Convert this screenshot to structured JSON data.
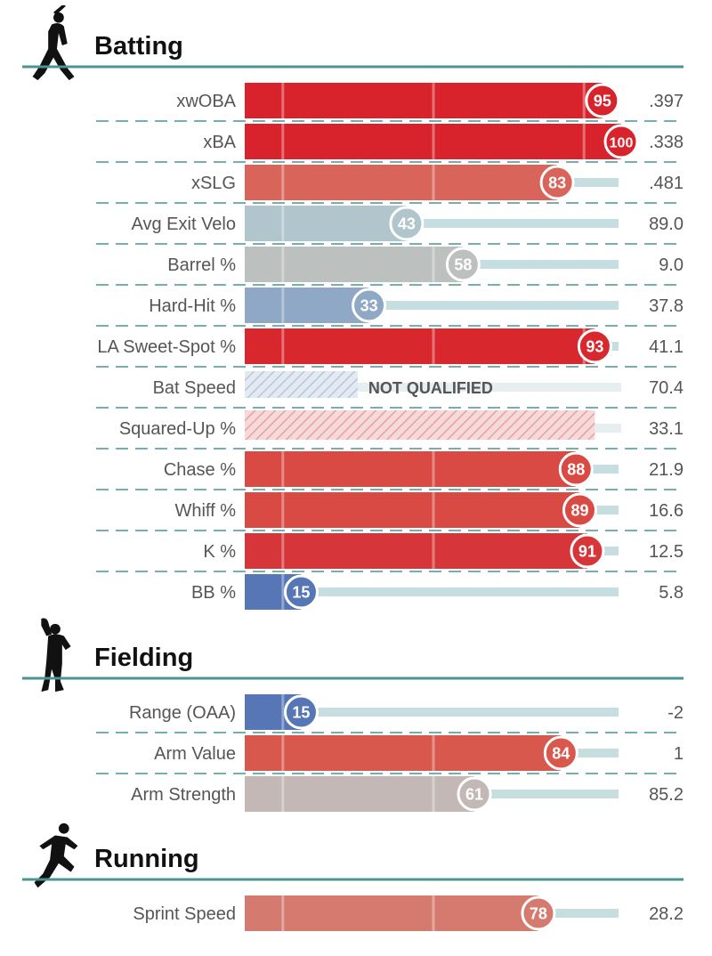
{
  "chart_data": {
    "type": "bar",
    "xlim": [
      0,
      100
    ],
    "colors": {
      "rule": "#4a9494",
      "track": "#c7dee0",
      "high": "#d62128",
      "low": "#3e65ad",
      "mid": "#bdbdbd"
    },
    "sections": [
      {
        "title": "Batting",
        "icon": "batter-icon",
        "metrics": [
          {
            "label": "xwOBA",
            "percentile": 95,
            "value": ".397",
            "color": "#d8222c",
            "qualified": true
          },
          {
            "label": "xBA",
            "percentile": 100,
            "value": ".338",
            "color": "#d8222c",
            "qualified": true
          },
          {
            "label": "xSLG",
            "percentile": 83,
            "value": ".481",
            "color": "#d9645a",
            "qualified": true
          },
          {
            "label": "Avg Exit Velo",
            "percentile": 43,
            "value": "89.0",
            "color": "#b0c6cc",
            "qualified": true
          },
          {
            "label": "Barrel %",
            "percentile": 58,
            "value": "9.0",
            "color": "#bcc0bf",
            "qualified": true
          },
          {
            "label": "Hard-Hit %",
            "percentile": 33,
            "value": "37.8",
            "color": "#8fa8c6",
            "qualified": true
          },
          {
            "label": "LA Sweet-Spot %",
            "percentile": 93,
            "value": "41.1",
            "color": "#d8282e",
            "qualified": true
          },
          {
            "label": "Bat Speed",
            "percentile": null,
            "value": "70.4",
            "color": "#b7c7da",
            "qualified": false,
            "fill": 0.3,
            "note": "NOT QUALIFIED"
          },
          {
            "label": "Squared-Up %",
            "percentile": null,
            "value": "33.1",
            "color": "#e8a0a0",
            "qualified": false,
            "fill": 0.93
          },
          {
            "label": "Chase %",
            "percentile": 88,
            "value": "21.9",
            "color": "#d94a44",
            "qualified": true
          },
          {
            "label": "Whiff %",
            "percentile": 89,
            "value": "16.6",
            "color": "#d94a44",
            "qualified": true
          },
          {
            "label": "K %",
            "percentile": 91,
            "value": "12.5",
            "color": "#d6363a",
            "qualified": true
          },
          {
            "label": "BB %",
            "percentile": 15,
            "value": "5.8",
            "color": "#5676b5",
            "qualified": true
          }
        ]
      },
      {
        "title": "Fielding",
        "icon": "fielder-icon",
        "metrics": [
          {
            "label": "Range (OAA)",
            "percentile": 15,
            "value": "-2",
            "color": "#5676b5",
            "qualified": true
          },
          {
            "label": "Arm Value",
            "percentile": 84,
            "value": "1",
            "color": "#d9584e",
            "qualified": true
          },
          {
            "label": "Arm Strength",
            "percentile": 61,
            "value": "85.2",
            "color": "#c3b8b5",
            "qualified": true
          }
        ]
      },
      {
        "title": "Running",
        "icon": "runner-icon",
        "metrics": [
          {
            "label": "Sprint Speed",
            "percentile": 78,
            "value": "28.2",
            "color": "#d57a6e",
            "qualified": true
          }
        ]
      }
    ]
  }
}
